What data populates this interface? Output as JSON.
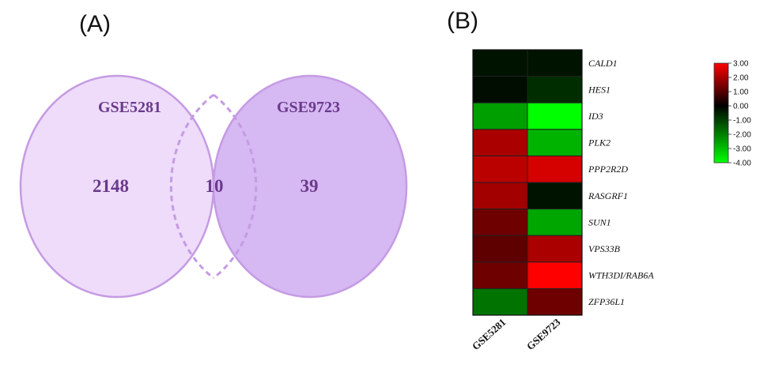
{
  "panels": {
    "a_label": "(A)",
    "b_label": "(B)"
  },
  "chart_data": [
    {
      "type": "venn",
      "sets": [
        {
          "name": "GSE5281",
          "only": 2148,
          "color": "#eedcfa"
        },
        {
          "name": "GSE9723",
          "only": 39,
          "color": "#d6b8f2"
        }
      ],
      "intersection": 10,
      "outline_color": "#c59be3"
    },
    {
      "type": "heatmap",
      "columns": [
        "GSE5281",
        "GSE9723"
      ],
      "rows": [
        "CALD1",
        "HES1",
        "ID3",
        "PLK2",
        "PPP2R2D",
        "RASGRF1",
        "SUN1",
        "VPS33B",
        "WTH3DI/RAB6A",
        "ZFP36L1"
      ],
      "values": [
        [
          -0.3,
          -0.3
        ],
        [
          -0.2,
          -0.7
        ],
        [
          -2.5,
          -4.0
        ],
        [
          2.0,
          -2.8
        ],
        [
          2.2,
          2.5
        ],
        [
          1.9,
          -0.3
        ],
        [
          1.3,
          -2.6
        ],
        [
          1.1,
          2.0
        ],
        [
          1.3,
          3.0
        ],
        [
          -1.8,
          1.3
        ]
      ],
      "colorscale": {
        "min": -4.0,
        "max": 3.0,
        "low_color": "#00ff00",
        "mid_color": "#000000",
        "high_color": "#ff0000",
        "ticks": [
          "3.00",
          "2.00",
          "1.00",
          "0.00",
          "-1.00",
          "-2.00",
          "-3.00",
          "-4.00"
        ]
      }
    }
  ]
}
